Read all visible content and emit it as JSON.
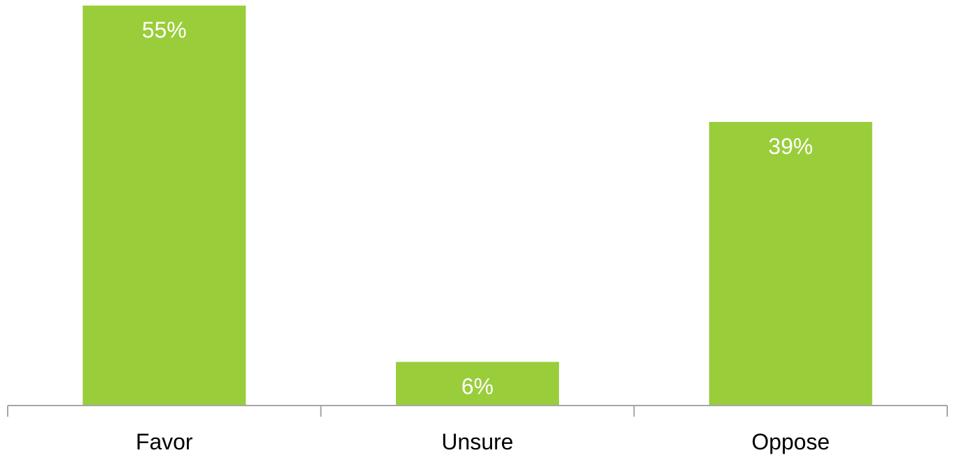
{
  "chart_data": {
    "type": "bar",
    "categories": [
      "Favor",
      "Unsure",
      "Oppose"
    ],
    "values": [
      55,
      6,
      39
    ],
    "value_labels": [
      "55%",
      "6%",
      "39%"
    ],
    "ylim": [
      0,
      55
    ],
    "grid": false,
    "legend": "none",
    "bar_color": "#9acd3a",
    "axis_color": "#a6a6a6"
  }
}
